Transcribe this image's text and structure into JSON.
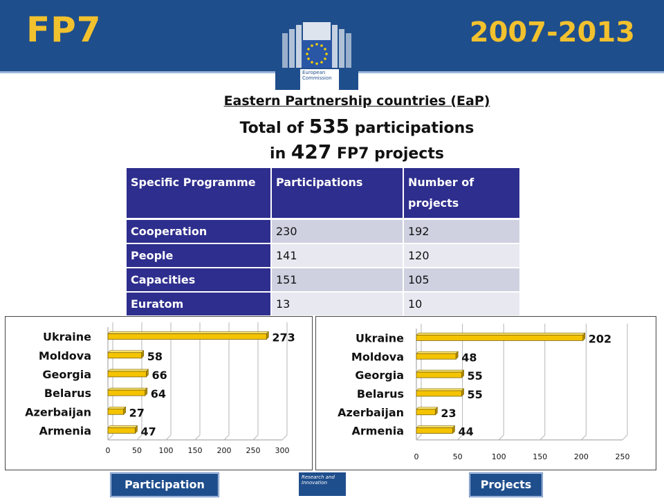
{
  "header": {
    "left_title": "FP7",
    "right_title": "2007-2013",
    "logo_text_line1": "European",
    "logo_text_line2": "Commission"
  },
  "titles": {
    "line1": "Eastern Partnership countries (EaP)",
    "line2_pre": "Total of ",
    "line2_num": "535",
    "line2_post": " participations",
    "line3_pre": "in ",
    "line3_num": "427",
    "line3_post": " FP7 projects"
  },
  "table": {
    "headers": [
      "Specific Programme",
      "Participations",
      "Number of projects"
    ],
    "rows": [
      {
        "programme": "Cooperation",
        "participations": "230",
        "projects": "192"
      },
      {
        "programme": "People",
        "participations": "141",
        "projects": "120"
      },
      {
        "programme": "Capacities",
        "participations": "151",
        "projects": "105"
      },
      {
        "programme": "Euratom",
        "participations": "13",
        "projects": "10"
      }
    ]
  },
  "chart_data": [
    {
      "type": "bar",
      "orientation": "horizontal",
      "categories": [
        "Ukraine",
        "Moldova",
        "Georgia",
        "Belarus",
        "Azerbaijan",
        "Armenia"
      ],
      "values": [
        273,
        58,
        66,
        64,
        27,
        47
      ],
      "xlim": [
        0,
        300
      ],
      "xticks": [
        "0",
        "50",
        "100",
        "150",
        "200",
        "250",
        "300"
      ],
      "bar_color": "#f5c400",
      "grid": true
    },
    {
      "type": "bar",
      "orientation": "horizontal",
      "categories": [
        "Ukraine",
        "Moldova",
        "Georgia",
        "Belarus",
        "Azerbaijan",
        "Armenia"
      ],
      "values": [
        202,
        48,
        55,
        55,
        23,
        44
      ],
      "xlim": [
        0,
        250
      ],
      "xticks": [
        "0",
        "50",
        "100",
        "150",
        "200",
        "250"
      ],
      "bar_color": "#f5c400",
      "grid": true
    }
  ],
  "buttons": {
    "participation": "Participation",
    "projects": "Projects"
  },
  "footer": {
    "ri_line1": "Research and",
    "ri_line2": "Innovation"
  },
  "colors": {
    "header_blue": "#1f4e8c",
    "title_yellow": "#f2c12e",
    "table_blue": "#2e2e8e"
  }
}
